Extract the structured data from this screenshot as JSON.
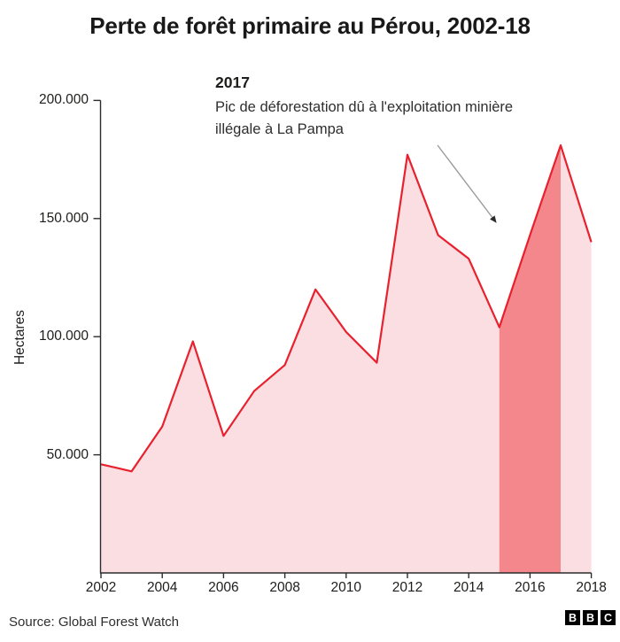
{
  "header": {
    "title": "Perte de forêt primaire au Pérou, 2002-18"
  },
  "annotation": {
    "year_label": "2017",
    "text_line1": "Pic de déforestation dû à l'exploitation minière",
    "text_line2": "illégale à La Pampa"
  },
  "axes": {
    "y_label": "Hectares",
    "y_ticks": [
      {
        "value": 200000,
        "label": "200.000"
      },
      {
        "value": 150000,
        "label": "150.000"
      },
      {
        "value": 100000,
        "label": "100.000"
      },
      {
        "value": 50000,
        "label": "50.000"
      }
    ],
    "x_ticks": [
      {
        "year": 2002,
        "label": "2002"
      },
      {
        "year": 2004,
        "label": "2004"
      },
      {
        "year": 2006,
        "label": "2006"
      },
      {
        "year": 2008,
        "label": "2008"
      },
      {
        "year": 2010,
        "label": "2010"
      },
      {
        "year": 2012,
        "label": "2012"
      },
      {
        "year": 2014,
        "label": "2014"
      },
      {
        "year": 2016,
        "label": "2016"
      },
      {
        "year": 2018,
        "label": "2018"
      }
    ]
  },
  "chart_data": {
    "type": "area",
    "title": "Perte de forêt primaire au Pérou, 2002-18",
    "xlabel": "",
    "ylabel": "Hectares",
    "x": [
      2002,
      2003,
      2004,
      2005,
      2006,
      2007,
      2008,
      2009,
      2010,
      2011,
      2012,
      2013,
      2014,
      2015,
      2016,
      2017,
      2018
    ],
    "values": [
      46000,
      43000,
      62000,
      98000,
      58000,
      77000,
      88000,
      120000,
      102000,
      89000,
      177000,
      143000,
      133000,
      104000,
      143000,
      181000,
      140000
    ],
    "ylim": [
      0,
      200000
    ],
    "xlim": [
      2002,
      2018
    ],
    "grid": false,
    "legend": false,
    "highlight_x_range": [
      2015,
      2017
    ],
    "colors": {
      "line": "#e8212e",
      "area": "#fbdee1",
      "area_highlight": "#f4878c",
      "axis": "#2b2b2b",
      "arrow_line": "#9b9b9b",
      "arrow_head": "#2b2b2b"
    }
  },
  "footer": {
    "source": "Source: Global Forest Watch",
    "logo_letters": [
      "B",
      "B",
      "C"
    ]
  }
}
